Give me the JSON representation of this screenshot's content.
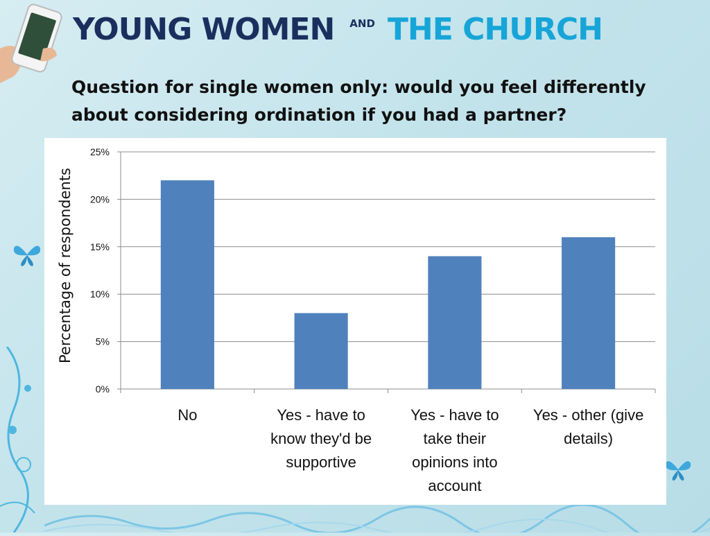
{
  "header": {
    "title_part1": "YOUNG WOMEN",
    "title_and": "AND",
    "title_part2": "THE CHURCH"
  },
  "question": "Question for single women only: would you feel differently about considering ordination if you had a partner?",
  "colors": {
    "bar": "#4f81bd",
    "navy": "#1b2f5e",
    "accent": "#17a5d8"
  },
  "chart_data": {
    "type": "bar",
    "categories": [
      [
        "No"
      ],
      [
        "Yes - have to",
        "know they'd be",
        "supportive"
      ],
      [
        "Yes - have to",
        "take their",
        "opinions into",
        "account"
      ],
      [
        "Yes - other (give",
        "details)"
      ]
    ],
    "values": [
      22,
      8,
      14,
      16
    ],
    "ylabel": "Percentage of respondents",
    "ylim": [
      0,
      25
    ],
    "yticks": [
      "0%",
      "5%",
      "10%",
      "15%",
      "20%",
      "25%"
    ],
    "grid": true,
    "legend": "none"
  }
}
